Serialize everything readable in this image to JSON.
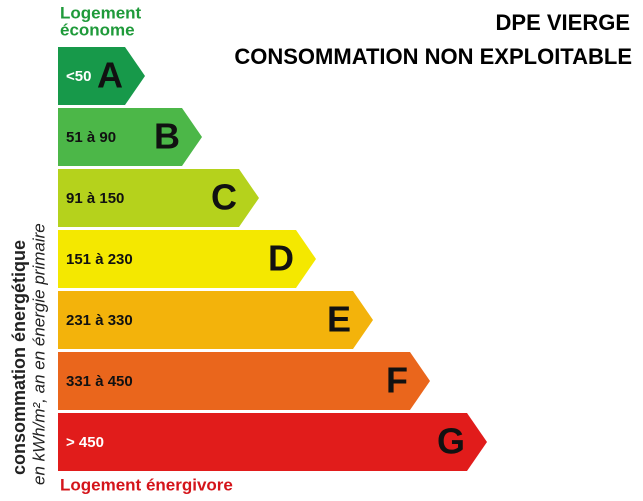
{
  "header": {
    "title": [
      "DPE VIERGE",
      "CONSOMMATION NON EXPLOITABLE"
    ]
  },
  "top_label": [
    "Logement",
    "économe"
  ],
  "bottom_label": "Logement énergivore",
  "axis_label": [
    "consommation énergétique",
    "en kWh/m², an en énergie primaire"
  ],
  "classes": [
    {
      "range": "<50",
      "letter": "A",
      "color": "#17994a"
    },
    {
      "range": "51 à 90",
      "letter": "B",
      "color": "#4cb748"
    },
    {
      "range": "91 à 150",
      "letter": "C",
      "color": "#b5d21c"
    },
    {
      "range": "151 à 230",
      "letter": "D",
      "color": "#f4e800"
    },
    {
      "range": "231 à 330",
      "letter": "E",
      "color": "#f3b30b"
    },
    {
      "range": "331 à 450",
      "letter": "F",
      "color": "#ea661c"
    },
    {
      "range": "> 450",
      "letter": "G",
      "color": "#e11c1b"
    }
  ]
}
